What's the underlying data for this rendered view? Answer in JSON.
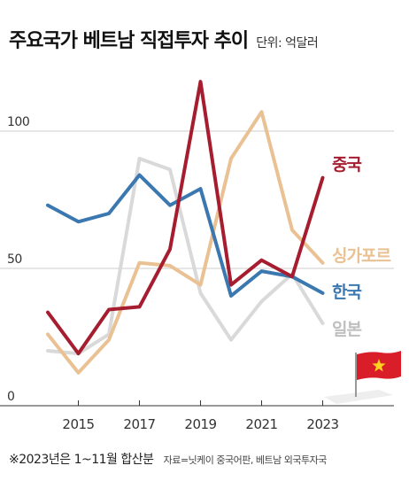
{
  "header": {
    "title": "주요국가 베트남 직접투자 추이",
    "unit": "단위: 억달러"
  },
  "chart_data": {
    "type": "line",
    "x": [
      2014,
      2015,
      2016,
      2017,
      2018,
      2019,
      2020,
      2021,
      2022,
      2023
    ],
    "xticks": [
      "2015",
      "2017",
      "2019",
      "2021",
      "2023"
    ],
    "yticks": [
      "0",
      "50",
      "100"
    ],
    "ylim": [
      0,
      130
    ],
    "grid": true,
    "series": [
      {
        "name": "일본",
        "color": "#d9d9d9",
        "values": [
          20,
          19,
          26,
          90,
          86,
          41,
          24,
          38,
          48,
          30
        ]
      },
      {
        "name": "싱가포르",
        "color": "#e9c193",
        "values": [
          26,
          12,
          24,
          52,
          51,
          44,
          90,
          107,
          64,
          52
        ]
      },
      {
        "name": "한국",
        "color": "#3b78b0",
        "values": [
          73,
          67,
          70,
          84,
          73,
          79,
          40,
          49,
          47,
          41
        ]
      },
      {
        "name": "중국",
        "color": "#a61d30",
        "values": [
          34,
          19,
          35,
          36,
          57,
          118,
          44,
          53,
          47,
          83
        ]
      }
    ]
  },
  "footnote": {
    "note": "※2023년은 1~11월 합산분",
    "source": "자료=닛케이 중국어판, 베트남 외국투자국"
  },
  "flag": {
    "colors": {
      "field": "#d91e2a",
      "star": "#ffd21f",
      "pole": "#999999",
      "shadow": "#eeeeee"
    }
  }
}
